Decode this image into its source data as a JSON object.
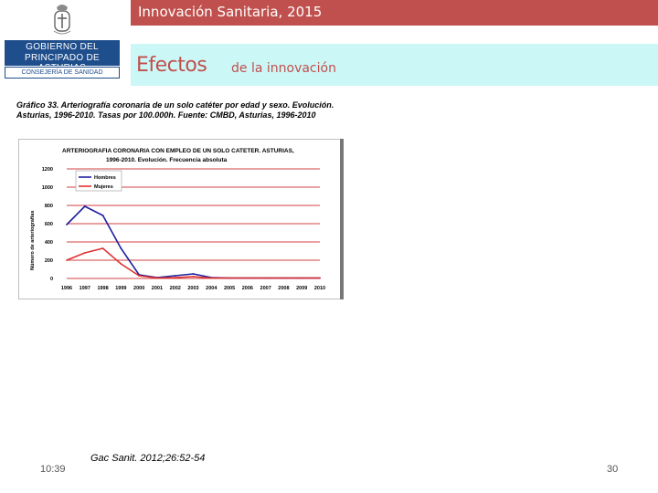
{
  "header": {
    "title": "Innovación Sanitaria, 2015"
  },
  "crest_icon": "coat-of-arms-icon",
  "logo": {
    "line1": "GOBIERNO DEL",
    "line2": "PRINCIPADO DE ASTURIAS",
    "subline": "CONSEJERÍA DE SANIDAD"
  },
  "slide": {
    "title_main": "Efectos",
    "title_rest": "de la innovación"
  },
  "caption": "Gráfico 33. Arteriografía coronaria de un solo catéter por edad y sexo. Evolución. Asturias, 1996-2010. Tasas por 100.000h. Fuente: CMBD, Asturias, 1996-2010",
  "chart_data": {
    "type": "line",
    "title": "ARTERIOGRAFIA CORONARIA CON EMPLEO DE UN SOLO CATETER. ASTURIAS, 1996-2010. Evolución. Frecuencia absoluta",
    "title_line1": "ARTERIOGRAFIA CORONARIA CON EMPLEO DE UN SOLO CATETER. ASTURIAS,",
    "title_line2": "1996-2010. Evolución. Frecuencia absoluta",
    "ylabel": "Número de arteriografías",
    "ylim": [
      0,
      1200
    ],
    "yticks": [
      0,
      200,
      400,
      600,
      800,
      1000,
      1200
    ],
    "categories": [
      "1996",
      "1997",
      "1998",
      "1999",
      "2000",
      "2001",
      "2002",
      "2003",
      "2004",
      "2005",
      "2006",
      "2007",
      "2008",
      "2009",
      "2010"
    ],
    "series": [
      {
        "name": "Hombres",
        "color": "#1f1f9f",
        "values": [
          590,
          790,
          690,
          330,
          40,
          10,
          30,
          50,
          10,
          5,
          5,
          5,
          5,
          5,
          5
        ]
      },
      {
        "name": "Mujeres",
        "color": "#e03030",
        "values": [
          200,
          280,
          330,
          160,
          30,
          5,
          10,
          20,
          5,
          5,
          5,
          5,
          5,
          5,
          5
        ]
      }
    ],
    "grid": true,
    "gridline_color": "#c00000",
    "legend": "top-left"
  },
  "footer": {
    "time": "10:39",
    "reference": "Gac Sanit. 2012;26:52-54",
    "page": "30"
  }
}
